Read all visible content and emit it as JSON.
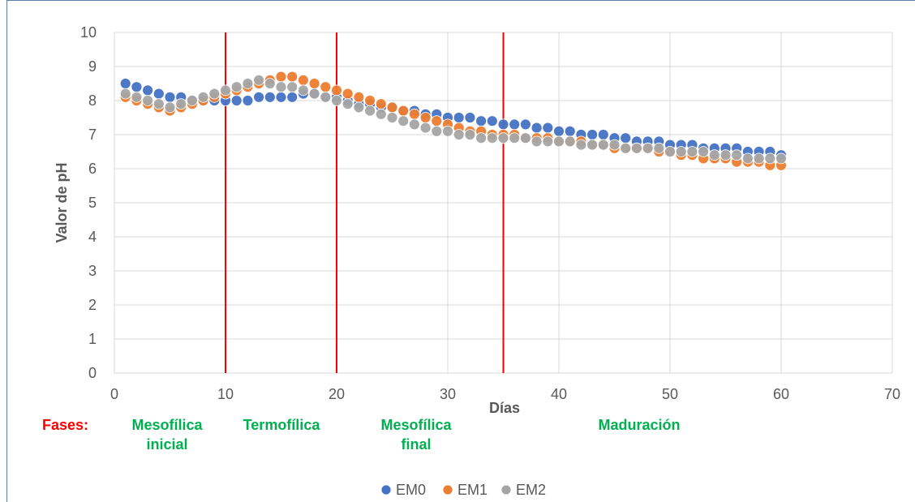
{
  "chart_data": {
    "type": "scatter",
    "xlabel": "Días",
    "ylabel": "Valor de pH",
    "xlim": [
      0,
      70
    ],
    "ylim": [
      0,
      10
    ],
    "x_ticks": [
      "0",
      "10",
      "20",
      "30",
      "40",
      "50",
      "60",
      "70"
    ],
    "y_ticks": [
      "0",
      "1",
      "2",
      "3",
      "4",
      "5",
      "6",
      "7",
      "8",
      "9",
      "10"
    ],
    "grid": "horizontal and vertical",
    "legend_position": "bottom",
    "phase_lines_x": [
      10,
      20,
      35
    ],
    "phase_line_color": "#ff0000",
    "phases_label": "Fases:",
    "phases": [
      {
        "lines": [
          "Mesofílica",
          "inicial"
        ]
      },
      {
        "lines": [
          "Termofílica"
        ]
      },
      {
        "lines": [
          "Mesofílica",
          "final"
        ]
      },
      {
        "lines": [
          "Maduración"
        ]
      }
    ],
    "series": [
      {
        "name": "EM0",
        "color": "#4472c4",
        "x": [
          1,
          2,
          3,
          4,
          5,
          6,
          7,
          8,
          9,
          10,
          11,
          12,
          13,
          14,
          15,
          16,
          17,
          18,
          19,
          20,
          21,
          22,
          23,
          24,
          25,
          26,
          27,
          28,
          29,
          30,
          31,
          32,
          33,
          34,
          35,
          36,
          37,
          38,
          39,
          40,
          41,
          42,
          43,
          44,
          45,
          46,
          47,
          48,
          49,
          50,
          51,
          52,
          53,
          54,
          55,
          56,
          57,
          58,
          59,
          60
        ],
        "y": [
          8.5,
          8.4,
          8.3,
          8.2,
          8.1,
          8.1,
          8.0,
          8.0,
          8.0,
          8.0,
          8.0,
          8.0,
          8.1,
          8.1,
          8.1,
          8.1,
          8.2,
          8.2,
          8.1,
          8.1,
          8.0,
          7.9,
          7.9,
          7.8,
          7.8,
          7.7,
          7.7,
          7.6,
          7.6,
          7.5,
          7.5,
          7.5,
          7.4,
          7.4,
          7.3,
          7.3,
          7.3,
          7.2,
          7.2,
          7.1,
          7.1,
          7.0,
          7.0,
          7.0,
          6.9,
          6.9,
          6.8,
          6.8,
          6.8,
          6.7,
          6.7,
          6.7,
          6.6,
          6.6,
          6.6,
          6.6,
          6.5,
          6.5,
          6.5,
          6.4
        ]
      },
      {
        "name": "EM1",
        "color": "#ed7d31",
        "x": [
          1,
          2,
          3,
          4,
          5,
          6,
          7,
          8,
          9,
          10,
          11,
          12,
          13,
          14,
          15,
          16,
          17,
          18,
          19,
          20,
          21,
          22,
          23,
          24,
          25,
          26,
          27,
          28,
          29,
          30,
          31,
          32,
          33,
          34,
          35,
          36,
          37,
          38,
          39,
          40,
          41,
          42,
          43,
          44,
          45,
          46,
          47,
          48,
          49,
          50,
          51,
          52,
          53,
          54,
          55,
          56,
          57,
          58,
          59,
          60
        ],
        "y": [
          8.1,
          8.0,
          7.9,
          7.8,
          7.7,
          7.8,
          7.9,
          8.0,
          8.1,
          8.2,
          8.3,
          8.4,
          8.5,
          8.6,
          8.7,
          8.7,
          8.6,
          8.5,
          8.4,
          8.3,
          8.2,
          8.1,
          8.0,
          7.9,
          7.8,
          7.7,
          7.6,
          7.5,
          7.4,
          7.3,
          7.2,
          7.1,
          7.1,
          7.0,
          7.0,
          7.0,
          6.9,
          6.9,
          6.9,
          6.8,
          6.8,
          6.8,
          6.7,
          6.7,
          6.6,
          6.6,
          6.6,
          6.6,
          6.5,
          6.5,
          6.4,
          6.4,
          6.3,
          6.3,
          6.3,
          6.2,
          6.2,
          6.2,
          6.1,
          6.1
        ]
      },
      {
        "name": "EM2",
        "color": "#a5a5a5",
        "x": [
          1,
          2,
          3,
          4,
          5,
          6,
          7,
          8,
          9,
          10,
          11,
          12,
          13,
          14,
          15,
          16,
          17,
          18,
          19,
          20,
          21,
          22,
          23,
          24,
          25,
          26,
          27,
          28,
          29,
          30,
          31,
          32,
          33,
          34,
          35,
          36,
          37,
          38,
          39,
          40,
          41,
          42,
          43,
          44,
          45,
          46,
          47,
          48,
          49,
          50,
          51,
          52,
          53,
          54,
          55,
          56,
          57,
          58,
          59,
          60
        ],
        "y": [
          8.2,
          8.1,
          8.0,
          7.9,
          7.8,
          7.9,
          8.0,
          8.1,
          8.2,
          8.3,
          8.4,
          8.5,
          8.6,
          8.5,
          8.4,
          8.4,
          8.3,
          8.2,
          8.1,
          8.0,
          7.9,
          7.8,
          7.7,
          7.6,
          7.5,
          7.4,
          7.3,
          7.2,
          7.1,
          7.1,
          7.0,
          7.0,
          6.9,
          6.9,
          6.9,
          6.9,
          6.9,
          6.8,
          6.8,
          6.8,
          6.8,
          6.7,
          6.7,
          6.7,
          6.7,
          6.6,
          6.6,
          6.6,
          6.6,
          6.5,
          6.5,
          6.5,
          6.5,
          6.4,
          6.4,
          6.4,
          6.3,
          6.3,
          6.3,
          6.3
        ]
      }
    ]
  }
}
